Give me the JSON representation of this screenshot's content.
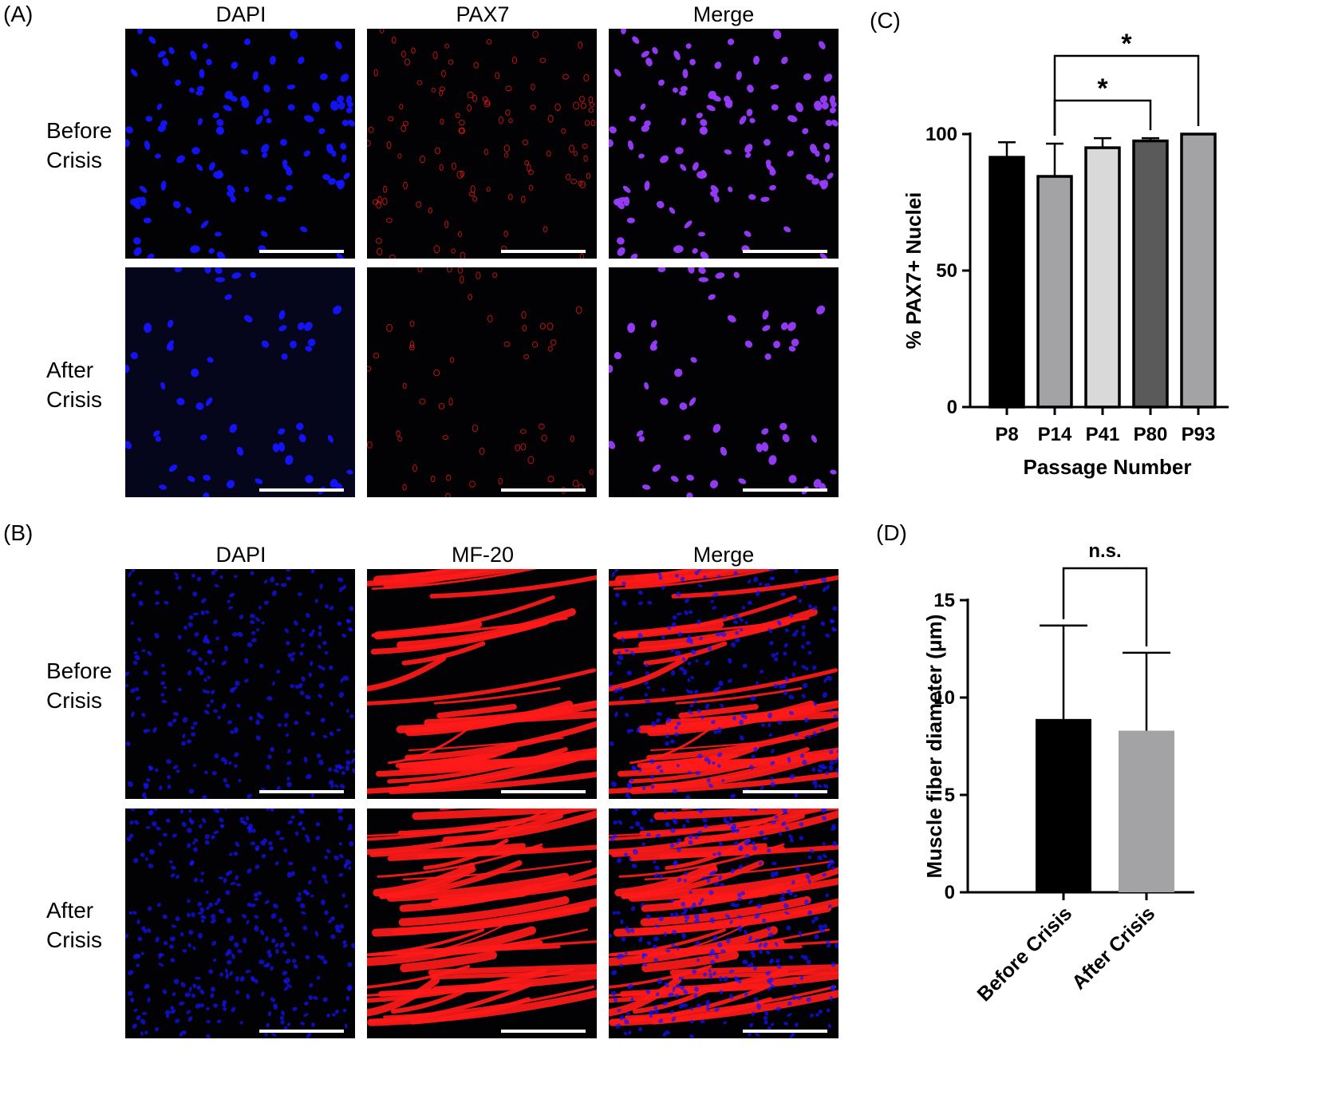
{
  "panel_letters": {
    "A": "(A)",
    "B": "(B)",
    "C": "(C)",
    "D": "(D)"
  },
  "panel_a": {
    "columns": [
      "DAPI",
      "PAX7",
      "Merge"
    ],
    "rows": [
      {
        "line1": "Before",
        "line2": "Crisis"
      },
      {
        "line1": "After",
        "line2": "Crisis"
      }
    ]
  },
  "panel_b": {
    "columns": [
      "DAPI",
      "MF-20",
      "Merge"
    ],
    "rows": [
      {
        "line1": "Before",
        "line2": "Crisis"
      },
      {
        "line1": "After",
        "line2": "Crisis"
      }
    ]
  },
  "colors": {
    "nuclei": "#1414ff",
    "stain": "#ff1a1a",
    "merge_nuclei": "#9a3cff",
    "image_bg": "#020205",
    "scalebar": "#ffffff"
  },
  "chart_data": [
    {
      "panel": "C",
      "type": "bar",
      "categories": [
        "P8",
        "P14",
        "P41",
        "P80",
        "P93"
      ],
      "values": [
        91.5,
        84.5,
        95,
        97.5,
        100
      ],
      "error_upper": [
        97,
        96.5,
        98.5,
        98.5,
        100
      ],
      "bar_colors": [
        "#000000",
        "#a3a3a6",
        "#d9d9d9",
        "#5a5a5a",
        "#a3a3a6"
      ],
      "xlabel": "Passage Number",
      "ylabel": "% PAX7+ Nuclei",
      "ylim": [
        0,
        100
      ],
      "yticks": [
        0,
        50,
        100
      ],
      "significance": [
        {
          "from": "P14",
          "to": "P80",
          "label": "*"
        },
        {
          "from": "P14",
          "to": "P93",
          "label": "*"
        }
      ]
    },
    {
      "panel": "D",
      "type": "bar",
      "categories": [
        "Before Crisis",
        "After Crisis"
      ],
      "values": [
        8.9,
        8.3
      ],
      "error_upper": [
        13.7,
        12.3
      ],
      "bar_colors": [
        "#000000",
        "#a3a3a6"
      ],
      "xlabel": "",
      "ylabel": "Muscle fiber diameter (μm)",
      "ylim": [
        0,
        15
      ],
      "yticks": [
        0,
        5,
        10,
        15
      ],
      "significance": [
        {
          "from": "Before Crisis",
          "to": "After Crisis",
          "label": "n.s."
        }
      ]
    }
  ]
}
